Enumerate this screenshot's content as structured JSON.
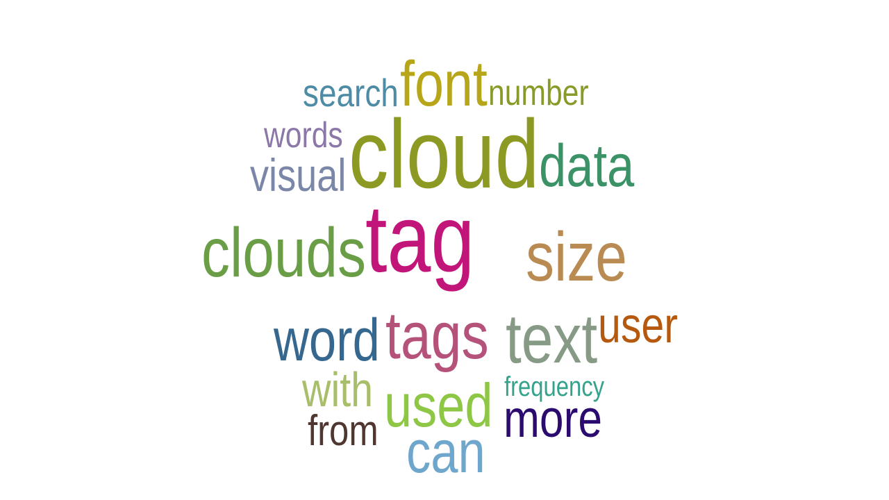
{
  "words": [
    {
      "id": "tag",
      "text": "tag",
      "color": "#c2157a"
    },
    {
      "id": "cloud",
      "text": "cloud",
      "color": "#8c9a23"
    },
    {
      "id": "clouds",
      "text": "clouds",
      "color": "#6a9e46"
    },
    {
      "id": "size",
      "text": "size",
      "color": "#b98b52"
    },
    {
      "id": "tags",
      "text": "tags",
      "color": "#b5527a"
    },
    {
      "id": "text",
      "text": "text",
      "color": "#869a86"
    },
    {
      "id": "word",
      "text": "word",
      "color": "#36678e"
    },
    {
      "id": "data",
      "text": "data",
      "color": "#3a9266"
    },
    {
      "id": "font",
      "text": "font",
      "color": "#b8a61a"
    },
    {
      "id": "used",
      "text": "used",
      "color": "#8ec645"
    },
    {
      "id": "can",
      "text": "can",
      "color": "#6fa6cc"
    },
    {
      "id": "more",
      "text": "more",
      "color": "#2b0b6e"
    },
    {
      "id": "visual",
      "text": "visual",
      "color": "#7b87a8"
    },
    {
      "id": "with",
      "text": "with",
      "color": "#a8be6a"
    },
    {
      "id": "user",
      "text": "user",
      "color": "#b4590e"
    },
    {
      "id": "search",
      "text": "search",
      "color": "#4e8ca6"
    },
    {
      "id": "number",
      "text": "number",
      "color": "#8a9a2a"
    },
    {
      "id": "words",
      "text": "words",
      "color": "#8c78a8"
    },
    {
      "id": "from",
      "text": "from",
      "color": "#4f3630"
    },
    {
      "id": "frequency",
      "text": "frequency",
      "color": "#35a28c"
    }
  ]
}
